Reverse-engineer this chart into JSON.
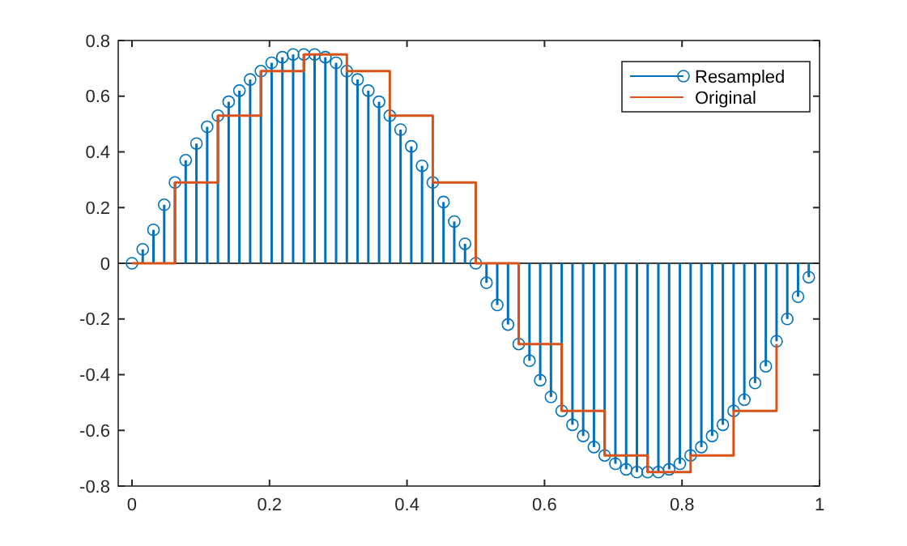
{
  "chart_data": {
    "type": "lollipop",
    "xlim": [
      -0.02,
      1
    ],
    "xticks": [
      0,
      0.2,
      0.4,
      0.6,
      0.8,
      1
    ],
    "ylim": [
      -0.8,
      0.8
    ],
    "yticks": [
      -0.8,
      -0.6,
      -0.4,
      -0.2,
      0,
      0.2,
      0.4,
      0.6,
      0.8
    ],
    "grid": false,
    "legend": "top right",
    "ref_lines": [
      {
        "axis": "y",
        "value": 0,
        "color": "#000000"
      }
    ],
    "series": [
      {
        "name": "Resampled",
        "marker": "circle",
        "color": "#0072bd",
        "x": [
          0,
          0.015625,
          0.03125,
          0.046875,
          0.0625,
          0.078125,
          0.09375,
          0.109375,
          0.125,
          0.140625,
          0.15625,
          0.171875,
          0.1875,
          0.203125,
          0.21875,
          0.234375,
          0.25,
          0.265625,
          0.28125,
          0.296875,
          0.3125,
          0.328125,
          0.34375,
          0.359375,
          0.375,
          0.390625,
          0.40625,
          0.421875,
          0.4375,
          0.453125,
          0.46875,
          0.484375,
          0.5,
          0.515625,
          0.53125,
          0.546875,
          0.5625,
          0.578125,
          0.59375,
          0.609375,
          0.625,
          0.640625,
          0.65625,
          0.671875,
          0.6875,
          0.703125,
          0.71875,
          0.734375,
          0.75,
          0.765625,
          0.78125,
          0.796875,
          0.8125,
          0.828125,
          0.84375,
          0.859375,
          0.875,
          0.890625,
          0.90625,
          0.921875,
          0.9375,
          0.953125,
          0.96875,
          0.984375
        ],
        "values": [
          0,
          0.05,
          0.12,
          0.21,
          0.29,
          0.37,
          0.43,
          0.49,
          0.53,
          0.58,
          0.62,
          0.66,
          0.69,
          0.72,
          0.74,
          0.75,
          0.75,
          0.75,
          0.74,
          0.72,
          0.69,
          0.66,
          0.62,
          0.58,
          0.53,
          0.48,
          0.42,
          0.35,
          0.29,
          0.22,
          0.15,
          0.07,
          0,
          -0.07,
          -0.15,
          -0.22,
          -0.29,
          -0.35,
          -0.42,
          -0.48,
          -0.53,
          -0.58,
          -0.62,
          -0.66,
          -0.69,
          -0.72,
          -0.74,
          -0.75,
          -0.75,
          -0.75,
          -0.74,
          -0.72,
          -0.69,
          -0.66,
          -0.62,
          -0.58,
          -0.53,
          -0.49,
          -0.43,
          -0.37,
          -0.28,
          -0.2,
          -0.12,
          -0.05
        ]
      },
      {
        "name": "Original",
        "type": "step",
        "marker": "none",
        "color": "#d95319",
        "x": [
          0,
          0.0625,
          0.125,
          0.1875,
          0.25,
          0.3125,
          0.375,
          0.4375,
          0.5,
          0.5625,
          0.625,
          0.6875,
          0.75,
          0.8125,
          0.875,
          0.9375
        ],
        "values": [
          0,
          0.29,
          0.53,
          0.69,
          0.75,
          0.69,
          0.53,
          0.29,
          0,
          -0.29,
          -0.53,
          -0.69,
          -0.75,
          -0.69,
          -0.53,
          -0.29
        ]
      }
    ]
  }
}
